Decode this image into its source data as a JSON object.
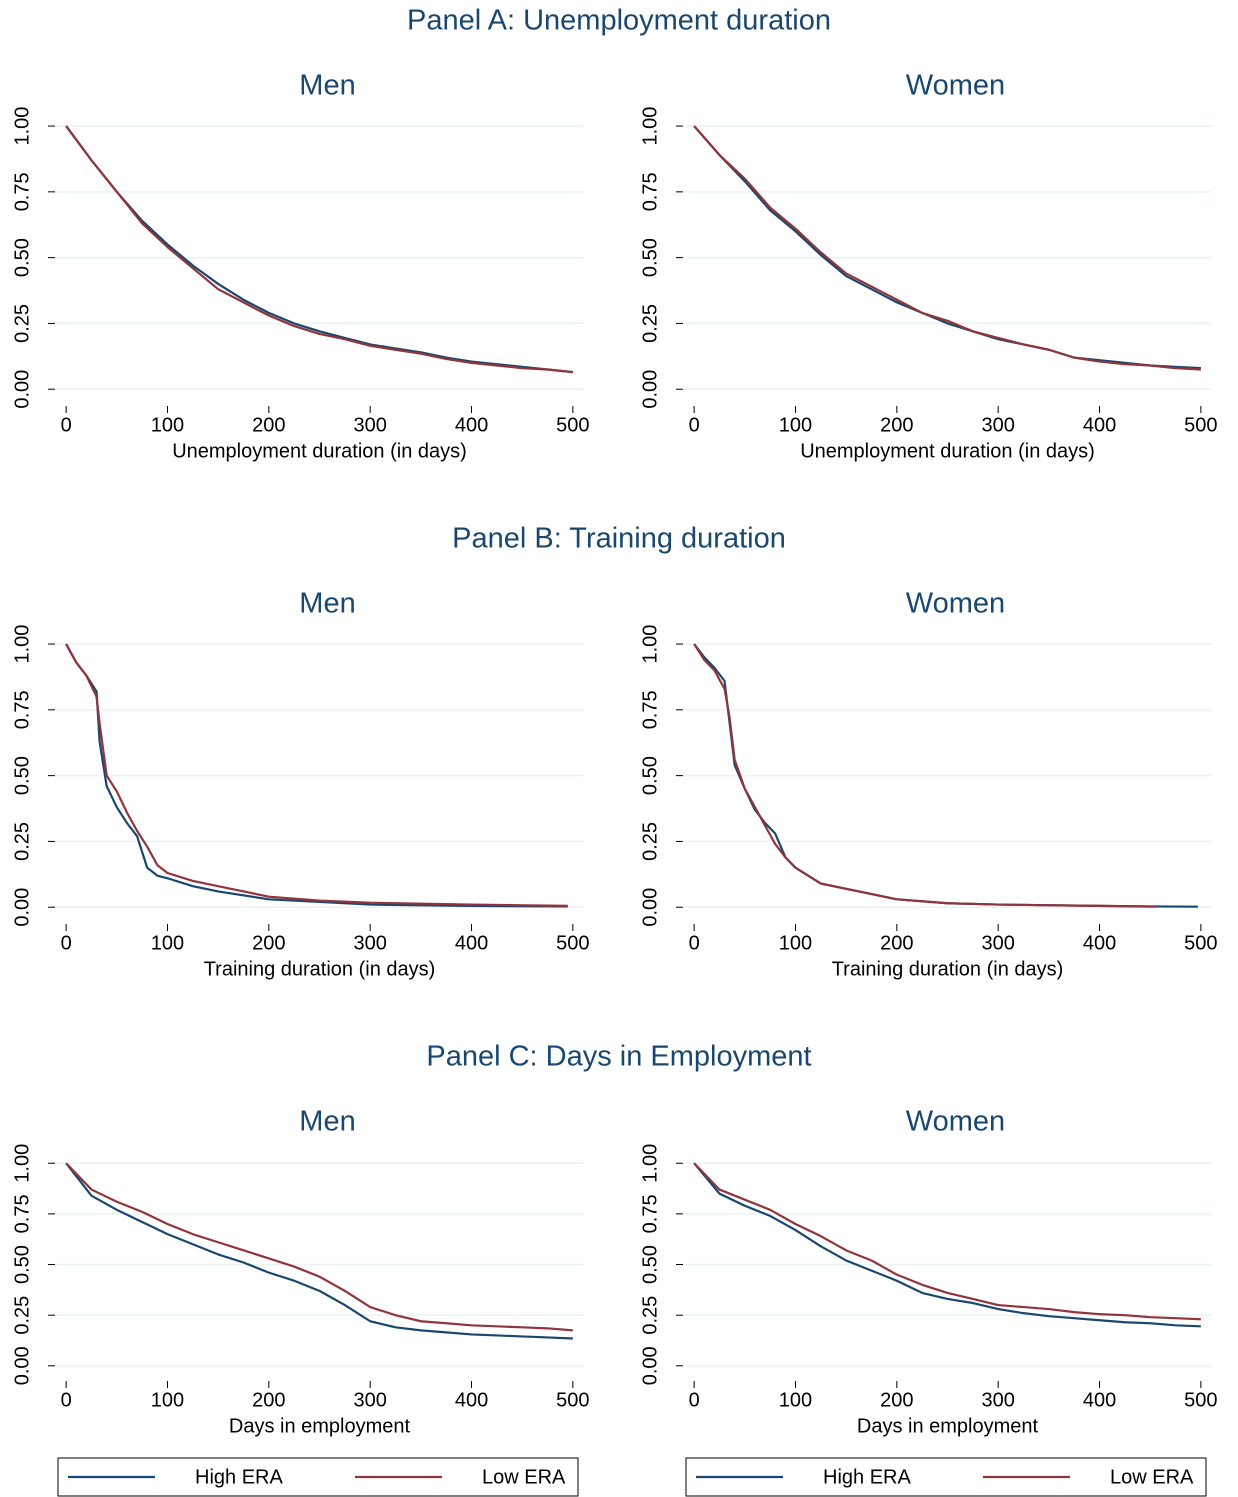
{
  "panel_titles": [
    "Panel A: Unemployment duration",
    "Panel B: Training duration",
    "Panel C: Days in Employment"
  ],
  "chart_data": [
    {
      "type": "line",
      "title": "Men",
      "xlabel": "Unemployment duration (in days)",
      "xlim": [
        -10,
        510
      ],
      "ylim": [
        -0.06,
        1.08
      ],
      "xticks": [
        0,
        100,
        200,
        300,
        400,
        500
      ],
      "yticks": [
        {
          "value": 0,
          "label": "0.00"
        },
        {
          "value": 0.25,
          "label": "0.25"
        },
        {
          "value": 0.5,
          "label": "0.50"
        },
        {
          "value": 0.75,
          "label": "0.75"
        },
        {
          "value": 1,
          "label": "1.00"
        }
      ],
      "grid": true,
      "x": [
        0,
        25,
        50,
        75,
        100,
        125,
        150,
        175,
        200,
        225,
        250,
        275,
        300,
        325,
        350,
        375,
        400,
        425,
        450,
        475,
        500
      ],
      "series": [
        {
          "name": "High ERA",
          "color": "#1a476f",
          "values": [
            1,
            0.87,
            0.75,
            0.64,
            0.55,
            0.47,
            0.4,
            0.34,
            0.29,
            0.25,
            0.22,
            0.195,
            0.17,
            0.155,
            0.14,
            0.12,
            0.105,
            0.095,
            0.085,
            0.075,
            0.065
          ]
        },
        {
          "name": "Low ERA",
          "color": "#90353b",
          "values": [
            1,
            0.87,
            0.75,
            0.63,
            0.54,
            0.46,
            0.38,
            0.33,
            0.28,
            0.24,
            0.21,
            0.19,
            0.165,
            0.15,
            0.135,
            0.115,
            0.1,
            0.09,
            0.08,
            0.075,
            0.065
          ]
        }
      ]
    },
    {
      "type": "line",
      "title": "Women",
      "xlabel": "Unemployment duration (in days)",
      "xlim": [
        -10,
        510
      ],
      "ylim": [
        -0.06,
        1.08
      ],
      "xticks": [
        0,
        100,
        200,
        300,
        400,
        500
      ],
      "yticks": [
        {
          "value": 0,
          "label": "0.00"
        },
        {
          "value": 0.25,
          "label": "0.25"
        },
        {
          "value": 0.5,
          "label": "0.50"
        },
        {
          "value": 0.75,
          "label": "0.75"
        },
        {
          "value": 1,
          "label": "1.00"
        }
      ],
      "grid": true,
      "x": [
        0,
        25,
        50,
        75,
        100,
        125,
        150,
        175,
        200,
        225,
        250,
        275,
        300,
        325,
        350,
        375,
        400,
        425,
        450,
        475,
        500
      ],
      "series": [
        {
          "name": "High ERA",
          "color": "#1a476f",
          "values": [
            1,
            0.89,
            0.79,
            0.68,
            0.6,
            0.51,
            0.43,
            0.38,
            0.33,
            0.29,
            0.25,
            0.22,
            0.19,
            0.17,
            0.15,
            0.12,
            0.11,
            0.1,
            0.09,
            0.085,
            0.08
          ]
        },
        {
          "name": "Low ERA",
          "color": "#90353b",
          "values": [
            1,
            0.89,
            0.8,
            0.69,
            0.61,
            0.52,
            0.44,
            0.39,
            0.34,
            0.29,
            0.26,
            0.22,
            0.195,
            0.17,
            0.15,
            0.12,
            0.105,
            0.095,
            0.09,
            0.08,
            0.075
          ]
        }
      ]
    },
    {
      "type": "line",
      "title": "Men",
      "xlabel": "Training duration (in days)",
      "xlim": [
        -10,
        510
      ],
      "ylim": [
        -0.06,
        1.08
      ],
      "xticks": [
        0,
        100,
        200,
        300,
        400,
        500
      ],
      "yticks": [
        {
          "value": 0,
          "label": "0.00"
        },
        {
          "value": 0.25,
          "label": "0.25"
        },
        {
          "value": 0.5,
          "label": "0.50"
        },
        {
          "value": 0.75,
          "label": "0.75"
        },
        {
          "value": 1,
          "label": "1.00"
        }
      ],
      "grid": true,
      "x": [
        0,
        10,
        20,
        30,
        33,
        40,
        50,
        60,
        70,
        80,
        90,
        100,
        125,
        150,
        200,
        250,
        300,
        400,
        495
      ],
      "series": [
        {
          "name": "High ERA",
          "color": "#1a476f",
          "values": [
            1,
            0.93,
            0.88,
            0.82,
            0.63,
            0.46,
            0.38,
            0.32,
            0.27,
            0.15,
            0.12,
            0.11,
            0.08,
            0.06,
            0.03,
            0.02,
            0.01,
            0.005,
            0.003
          ]
        },
        {
          "name": "Low ERA",
          "color": "#90353b",
          "values": [
            1,
            0.93,
            0.88,
            0.8,
            0.7,
            0.5,
            0.44,
            0.36,
            0.29,
            0.23,
            0.16,
            0.13,
            0.1,
            0.08,
            0.04,
            0.025,
            0.017,
            0.01,
            0.005
          ]
        }
      ]
    },
    {
      "type": "line",
      "title": "Women",
      "xlabel": "Training duration (in days)",
      "xlim": [
        -10,
        510
      ],
      "ylim": [
        -0.06,
        1.08
      ],
      "xticks": [
        0,
        100,
        200,
        300,
        400,
        500
      ],
      "yticks": [
        {
          "value": 0,
          "label": "0.00"
        },
        {
          "value": 0.25,
          "label": "0.25"
        },
        {
          "value": 0.5,
          "label": "0.50"
        },
        {
          "value": 0.75,
          "label": "0.75"
        },
        {
          "value": 1,
          "label": "1.00"
        }
      ],
      "grid": true,
      "x": [
        0,
        10,
        20,
        30,
        35,
        40,
        50,
        60,
        70,
        80,
        90,
        100,
        125,
        150,
        200,
        250,
        300,
        400,
        455,
        497
      ],
      "series": [
        {
          "name": "High ERA",
          "color": "#1a476f",
          "values": [
            1,
            0.95,
            0.91,
            0.86,
            0.7,
            0.54,
            0.45,
            0.37,
            0.32,
            0.28,
            0.19,
            0.15,
            0.09,
            0.07,
            0.03,
            0.015,
            0.01,
            0.005,
            0.003,
            0.002
          ]
        },
        {
          "name": "Low ERA",
          "color": "#90353b",
          "values": [
            1,
            0.94,
            0.9,
            0.83,
            0.72,
            0.56,
            0.45,
            0.38,
            0.31,
            0.24,
            0.19,
            0.15,
            0.09,
            0.07,
            0.03,
            0.015,
            0.01,
            0.005,
            0.002,
            null
          ]
        }
      ]
    },
    {
      "type": "line",
      "title": "Men",
      "xlabel": "Days in employment",
      "xlim": [
        -10,
        510
      ],
      "ylim": [
        -0.07,
        1.09
      ],
      "xticks": [
        0,
        100,
        200,
        300,
        400,
        500
      ],
      "yticks": [
        {
          "value": 0,
          "label": "0.00"
        },
        {
          "value": 0.25,
          "label": "0.25"
        },
        {
          "value": 0.5,
          "label": "0.50"
        },
        {
          "value": 0.75,
          "label": "0.75"
        },
        {
          "value": 1,
          "label": "1.00"
        }
      ],
      "grid": true,
      "legend": "bottom",
      "x": [
        0,
        25,
        50,
        75,
        100,
        125,
        150,
        175,
        200,
        225,
        250,
        275,
        300,
        325,
        350,
        375,
        400,
        425,
        450,
        475,
        500
      ],
      "series": [
        {
          "name": "High ERA",
          "color": "#1a476f",
          "values": [
            1,
            0.84,
            0.77,
            0.71,
            0.65,
            0.6,
            0.55,
            0.51,
            0.46,
            0.42,
            0.37,
            0.3,
            0.22,
            0.19,
            0.175,
            0.165,
            0.155,
            0.15,
            0.145,
            0.14,
            0.135
          ]
        },
        {
          "name": "Low ERA",
          "color": "#90353b",
          "values": [
            1,
            0.87,
            0.81,
            0.76,
            0.7,
            0.65,
            0.61,
            0.57,
            0.53,
            0.49,
            0.44,
            0.37,
            0.29,
            0.25,
            0.22,
            0.21,
            0.2,
            0.195,
            0.19,
            0.185,
            0.175
          ]
        }
      ]
    },
    {
      "type": "line",
      "title": "Women",
      "xlabel": "Days in employment",
      "xlim": [
        -10,
        510
      ],
      "ylim": [
        -0.07,
        1.09
      ],
      "xticks": [
        0,
        100,
        200,
        300,
        400,
        500
      ],
      "yticks": [
        {
          "value": 0,
          "label": "0.00"
        },
        {
          "value": 0.25,
          "label": "0.25"
        },
        {
          "value": 0.5,
          "label": "0.50"
        },
        {
          "value": 0.75,
          "label": "0.75"
        },
        {
          "value": 1,
          "label": "1.00"
        }
      ],
      "grid": true,
      "legend": "bottom",
      "x": [
        0,
        25,
        50,
        75,
        100,
        125,
        150,
        175,
        200,
        225,
        250,
        275,
        300,
        325,
        350,
        375,
        400,
        425,
        450,
        475,
        500
      ],
      "series": [
        {
          "name": "High ERA",
          "color": "#1a476f",
          "values": [
            1,
            0.85,
            0.79,
            0.74,
            0.67,
            0.59,
            0.52,
            0.47,
            0.42,
            0.36,
            0.33,
            0.31,
            0.28,
            0.26,
            0.245,
            0.235,
            0.225,
            0.215,
            0.21,
            0.2,
            0.195
          ]
        },
        {
          "name": "Low ERA",
          "color": "#90353b",
          "values": [
            1,
            0.87,
            0.82,
            0.77,
            0.7,
            0.64,
            0.57,
            0.52,
            0.45,
            0.4,
            0.36,
            0.33,
            0.3,
            0.29,
            0.28,
            0.265,
            0.255,
            0.25,
            0.24,
            0.235,
            0.23
          ]
        }
      ]
    }
  ]
}
